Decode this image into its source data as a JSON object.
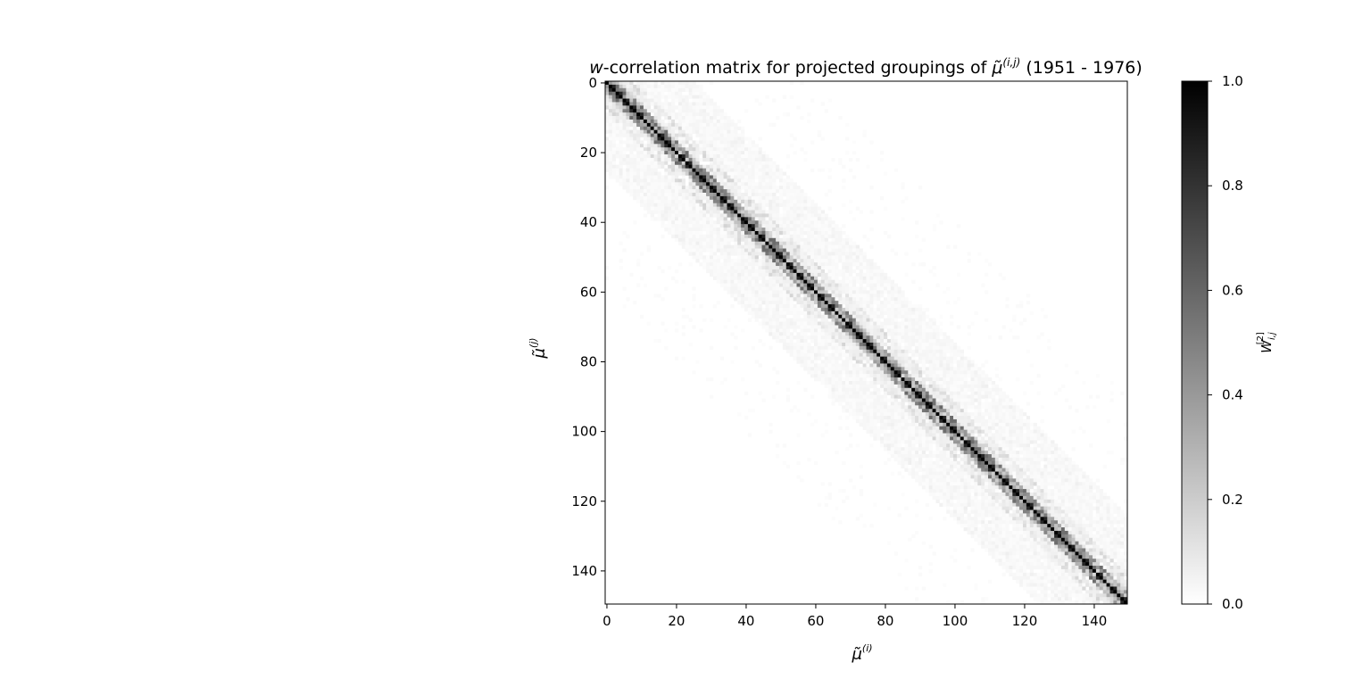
{
  "chart_data": {
    "type": "heatmap",
    "title_prefix": "w",
    "title_middle": "-correlation matrix for projected groupings of ",
    "title_symbol": "μ̃",
    "title_superscript": "(i,j)",
    "title_suffix": " (1951 - 1976)",
    "xlabel": "μ̃",
    "xlabel_superscript": "(i)",
    "ylabel": "μ̃",
    "ylabel_superscript": "(j)",
    "matrix_size": 150,
    "x_ticks": [
      0,
      20,
      40,
      60,
      80,
      100,
      120,
      140
    ],
    "y_ticks": [
      0,
      20,
      40,
      60,
      80,
      100,
      120,
      140
    ],
    "xlim": [
      0,
      150
    ],
    "ylim": [
      150,
      0
    ],
    "colormap": "gray_r",
    "colorbar": {
      "label": "W",
      "label_superscript": "[2]",
      "label_subscript": "i,j",
      "range": [
        0.0,
        1.0
      ],
      "ticks": [
        "0.0",
        "0.2",
        "0.4",
        "0.6",
        "0.8",
        "1.0"
      ],
      "low_color": "#ffffff",
      "high_color": "#000000"
    },
    "pattern": {
      "diagonal_value": 1.0,
      "strong_pairs": [
        [
          1,
          2
        ],
        [
          3,
          4
        ],
        [
          5,
          6
        ],
        [
          7,
          8
        ],
        [
          9,
          10
        ],
        [
          15,
          16
        ],
        [
          17,
          18
        ],
        [
          21,
          22
        ],
        [
          23,
          24
        ],
        [
          27,
          28
        ],
        [
          30,
          31
        ],
        [
          33,
          34
        ],
        [
          35,
          36
        ],
        [
          39,
          40
        ],
        [
          41,
          42
        ],
        [
          44,
          45
        ],
        [
          49,
          50
        ],
        [
          52,
          53
        ],
        [
          55,
          56
        ],
        [
          58,
          59
        ],
        [
          61,
          62
        ],
        [
          64,
          65
        ],
        [
          69,
          70
        ],
        [
          72,
          73
        ],
        [
          75,
          76
        ],
        [
          79,
          80
        ],
        [
          83,
          84
        ],
        [
          86,
          87
        ],
        [
          89,
          90
        ],
        [
          92,
          93
        ],
        [
          96,
          97
        ],
        [
          99,
          100
        ],
        [
          103,
          104
        ],
        [
          107,
          108
        ],
        [
          110,
          111
        ],
        [
          114,
          115
        ],
        [
          117,
          118
        ],
        [
          121,
          122
        ],
        [
          125,
          126
        ],
        [
          129,
          130
        ],
        [
          133,
          134
        ],
        [
          137,
          138
        ],
        [
          141,
          142
        ],
        [
          145,
          146
        ],
        [
          148,
          149
        ]
      ]
    }
  }
}
